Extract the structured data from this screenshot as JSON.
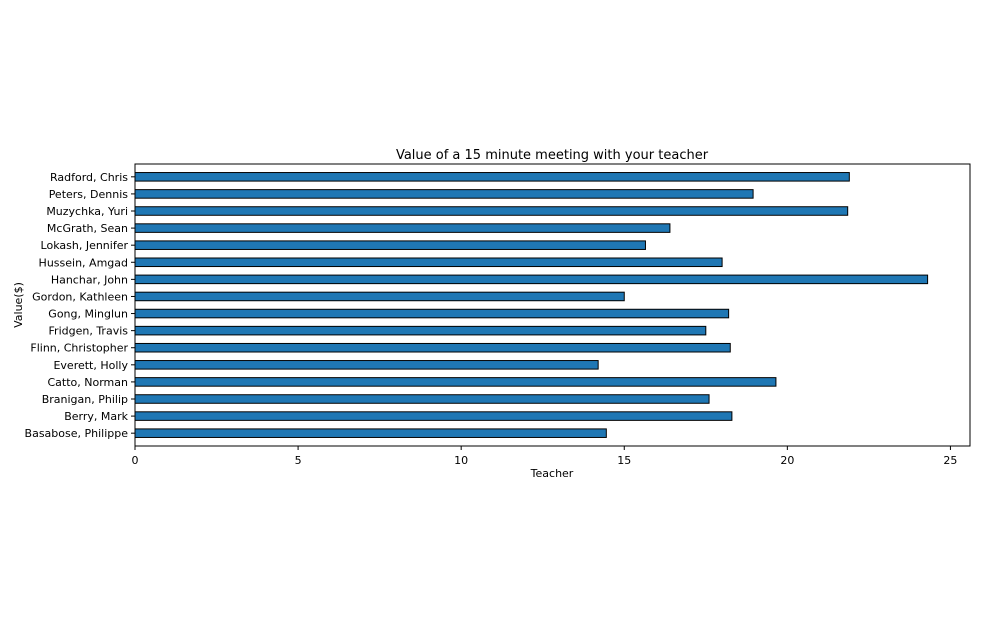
{
  "chart_data": {
    "type": "bar",
    "orientation": "horizontal",
    "title": "Value of a 15 minute meeting with your teacher",
    "xlabel": "Teacher",
    "ylabel": "Value($)",
    "xlim": [
      0,
      25.6
    ],
    "xticks": [
      0,
      5,
      10,
      15,
      20,
      25
    ],
    "categories": [
      "Basabose, Philippe",
      "Berry, Mark",
      "Branigan, Philip",
      "Catto, Norman",
      "Everett, Holly",
      "Flinn, Christopher",
      "Fridgen, Travis",
      "Gong, Minglun",
      "Gordon, Kathleen",
      "Hanchar, John",
      "Hussein, Amgad",
      "Lokash, Jennifer",
      "McGrath, Sean",
      "Muzychka, Yuri",
      "Peters, Dennis",
      "Radford, Chris"
    ],
    "values": [
      14.45,
      18.3,
      17.6,
      19.65,
      14.2,
      18.25,
      17.5,
      18.2,
      15.0,
      24.3,
      18.0,
      15.65,
      16.4,
      21.85,
      18.95,
      21.9
    ],
    "bar_color": "#1f77b4",
    "edge_color": "#000000",
    "grid": false,
    "legend": "none"
  }
}
